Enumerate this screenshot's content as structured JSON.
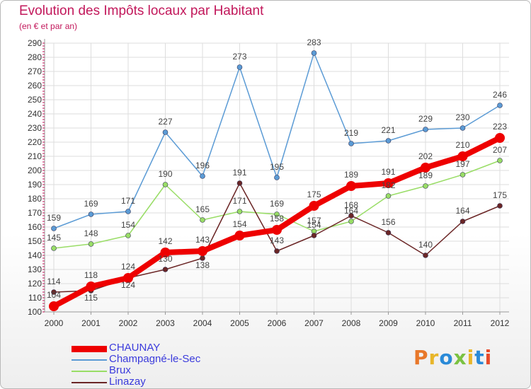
{
  "header": {
    "title": "Evolution des Impôts locaux par Habitant",
    "subtitle": "(en € et par an)"
  },
  "logo": {
    "text": "Proxiti",
    "colors": [
      "#e8782a",
      "#e8b62a",
      "#2a8ad8",
      "#7bc242",
      "#e8b62a",
      "#2a8ad8",
      "#e84a2a"
    ]
  },
  "chart_data": {
    "type": "line",
    "title": "Evolution des Impôts locaux par Habitant",
    "subtitle": "(en € et par an)",
    "xlabel": "",
    "ylabel": "",
    "ylim": [
      100,
      290
    ],
    "y_ticks": [
      100,
      110,
      120,
      130,
      140,
      150,
      160,
      170,
      180,
      190,
      200,
      210,
      220,
      230,
      240,
      250,
      260,
      270,
      280,
      290
    ],
    "grid": true,
    "legend_position": "bottom-left",
    "x": [
      "2000",
      "2001",
      "2002",
      "2003",
      "2004",
      "2005",
      "2006",
      "2007",
      "2008",
      "2009",
      "2010",
      "2011",
      "2012"
    ],
    "series": [
      {
        "name": "Champagné-le-Sec",
        "color": "#5b9bd5",
        "values": [
          159,
          169,
          171,
          227,
          196,
          273,
          195,
          283,
          219,
          221,
          229,
          230,
          246
        ]
      },
      {
        "name": "Brux",
        "color": "#99dd66",
        "values": [
          145,
          148,
          154,
          190,
          165,
          171,
          169,
          157,
          164,
          182,
          189,
          197,
          207
        ]
      },
      {
        "name": "Linazay",
        "color": "#6b2626",
        "values": [
          114,
          115,
          124,
          130,
          138,
          191,
          143,
          154,
          168,
          156,
          140,
          164,
          175
        ]
      },
      {
        "name": "CHAUNAY",
        "color": "#ee0000",
        "values": [
          104,
          118,
          124,
          142,
          143,
          154,
          158,
          175,
          189,
          191,
          202,
          210,
          223
        ]
      }
    ],
    "legend_order": [
      "CHAUNAY",
      "Champagné-le-Sec",
      "Brux",
      "Linazay"
    ]
  }
}
